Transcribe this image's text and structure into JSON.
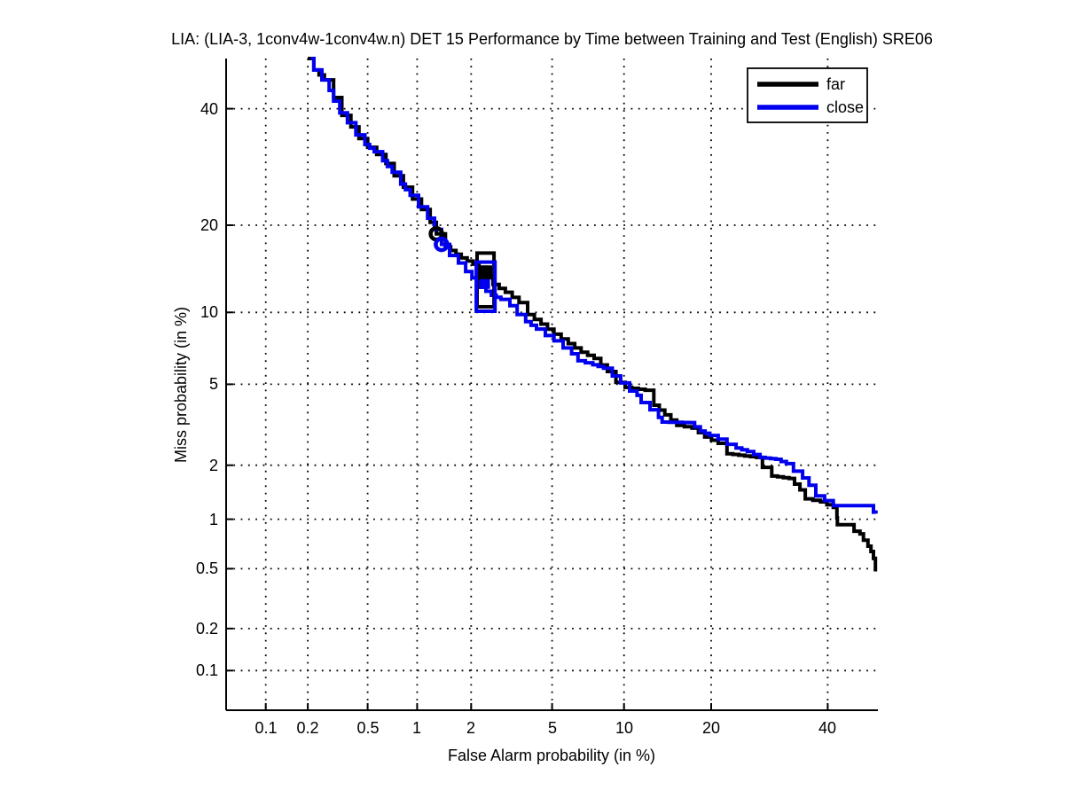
{
  "chart_data": {
    "type": "line",
    "variant": "det-curve",
    "title": "LIA: (LIA-3, 1conv4w-1conv4w.n) DET 15 Performance by Time between Training and Test (English) SRE06",
    "xlabel": "False Alarm probability (in %)",
    "ylabel": "Miss probability (in %)",
    "axis_scale": "probit",
    "xlim_pct": [
      0.05,
      50
    ],
    "ylim_pct": [
      0.05,
      50
    ],
    "xticks_pct": [
      0.1,
      0.2,
      0.5,
      1,
      2,
      5,
      10,
      20,
      40
    ],
    "xtick_labels": [
      "0.1",
      "0.2",
      "0.5",
      "1",
      "2",
      "5",
      "10",
      "20",
      "40"
    ],
    "yticks_pct": [
      40,
      20,
      10,
      5,
      2,
      1,
      0.5,
      0.2,
      0.1
    ],
    "ytick_labels": [
      "40",
      "20",
      "10",
      "5",
      "2",
      "1",
      "0.5",
      "0.2",
      "0.1"
    ],
    "grid": "dotted",
    "colors": {
      "far": "#000000",
      "close": "#0000ee",
      "grid": "#000000",
      "axis": "#000000"
    },
    "legend": {
      "position": "top-right",
      "entries": [
        {
          "label": "far",
          "color": "#000000"
        },
        {
          "label": "close",
          "color": "#0000ee"
        }
      ]
    },
    "series": [
      {
        "name": "far",
        "color": "#000000",
        "points_fa_miss_pct": [
          [
            0.2,
            50
          ],
          [
            0.22,
            47.7
          ],
          [
            0.26,
            45.7
          ],
          [
            0.3,
            42.2
          ],
          [
            0.34,
            38.7
          ],
          [
            0.39,
            36.5
          ],
          [
            0.44,
            34.3
          ],
          [
            0.5,
            32.7
          ],
          [
            0.57,
            31.4
          ],
          [
            0.65,
            29.8
          ],
          [
            0.73,
            27.7
          ],
          [
            0.83,
            25.8
          ],
          [
            0.94,
            23.9
          ],
          [
            1.06,
            22.3
          ],
          [
            1.19,
            20.4
          ],
          [
            1.29,
            18.8
          ],
          [
            1.45,
            17.1
          ],
          [
            1.77,
            15.7
          ],
          [
            2.2,
            14.6
          ],
          [
            2.6,
            12.7
          ],
          [
            3.0,
            11.9
          ],
          [
            3.5,
            10.9
          ],
          [
            3.85,
            9.8
          ],
          [
            4.45,
            9.0
          ],
          [
            5.1,
            8.2
          ],
          [
            5.9,
            7.5
          ],
          [
            6.7,
            6.9
          ],
          [
            7.6,
            6.5
          ],
          [
            8.6,
            5.7
          ],
          [
            9.3,
            5.1
          ],
          [
            10.1,
            4.84
          ],
          [
            12.0,
            4.7
          ],
          [
            12.9,
            4.0
          ],
          [
            14.1,
            3.6
          ],
          [
            15.5,
            3.2
          ],
          [
            17.4,
            3.1
          ],
          [
            19.1,
            2.8
          ],
          [
            21.0,
            2.6
          ],
          [
            22.3,
            2.3
          ],
          [
            27.0,
            2.2
          ],
          [
            28.0,
            1.95
          ],
          [
            29.6,
            1.75
          ],
          [
            32.7,
            1.7
          ],
          [
            34.7,
            1.47
          ],
          [
            35.7,
            1.31
          ],
          [
            38.6,
            1.26
          ],
          [
            41.1,
            1.17
          ],
          [
            41.8,
            1.02
          ],
          [
            41.9,
            0.93
          ],
          [
            44.3,
            0.93
          ],
          [
            45.2,
            0.85
          ],
          [
            46.4,
            0.82
          ],
          [
            47.1,
            0.75
          ],
          [
            48.0,
            0.69
          ],
          [
            48.6,
            0.64
          ],
          [
            49.1,
            0.58
          ],
          [
            49.5,
            0.48
          ]
        ]
      },
      {
        "name": "close",
        "color": "#0000ee",
        "points_fa_miss_pct": [
          [
            0.21,
            50
          ],
          [
            0.22,
            47.7
          ],
          [
            0.25,
            45.7
          ],
          [
            0.28,
            43.6
          ],
          [
            0.3,
            41.5
          ],
          [
            0.33,
            39.2
          ],
          [
            0.37,
            37.3
          ],
          [
            0.42,
            35.0
          ],
          [
            0.48,
            33.2
          ],
          [
            0.55,
            31.9
          ],
          [
            0.62,
            30.3
          ],
          [
            0.71,
            28.3
          ],
          [
            0.8,
            26.3
          ],
          [
            0.91,
            24.5
          ],
          [
            1.02,
            22.7
          ],
          [
            1.15,
            21.0
          ],
          [
            1.26,
            19.4
          ],
          [
            1.38,
            17.4
          ],
          [
            1.53,
            16.0
          ],
          [
            1.71,
            15.1
          ],
          [
            1.87,
            14.1
          ],
          [
            2.02,
            13.4
          ],
          [
            2.24,
            12.4
          ],
          [
            2.55,
            11.6
          ],
          [
            2.85,
            11.2
          ],
          [
            3.16,
            10.6
          ],
          [
            3.43,
            9.8
          ],
          [
            3.77,
            9.2
          ],
          [
            4.24,
            8.6
          ],
          [
            4.66,
            8.1
          ],
          [
            5.1,
            7.7
          ],
          [
            5.6,
            7.2
          ],
          [
            6.1,
            6.8
          ],
          [
            6.5,
            6.35
          ],
          [
            7.5,
            6.1
          ],
          [
            8.3,
            5.9
          ],
          [
            9.0,
            5.45
          ],
          [
            9.7,
            5.07
          ],
          [
            10.5,
            4.66
          ],
          [
            11.2,
            4.45
          ],
          [
            11.6,
            4.12
          ],
          [
            12.5,
            3.81
          ],
          [
            13.4,
            3.5
          ],
          [
            13.8,
            3.32
          ],
          [
            17.0,
            3.3
          ],
          [
            18.5,
            3.0
          ],
          [
            19.8,
            2.85
          ],
          [
            21.0,
            2.73
          ],
          [
            22.3,
            2.57
          ],
          [
            23.7,
            2.46
          ],
          [
            25.5,
            2.36
          ],
          [
            27.6,
            2.2
          ],
          [
            30.3,
            2.15
          ],
          [
            32.2,
            2.04
          ],
          [
            33.5,
            1.86
          ],
          [
            35.2,
            1.71
          ],
          [
            36.4,
            1.56
          ],
          [
            37.7,
            1.36
          ],
          [
            39.4,
            1.28
          ],
          [
            41.1,
            1.2
          ],
          [
            48.8,
            1.2
          ],
          [
            49.1,
            1.1
          ],
          [
            49.6,
            1.08
          ]
        ]
      }
    ],
    "markers": [
      {
        "series": "far",
        "shape": "circle",
        "fa_pct": 1.29,
        "miss_pct": 18.8
      },
      {
        "series": "close",
        "shape": "circle",
        "fa_pct": 1.38,
        "miss_pct": 17.4
      },
      {
        "series": "far",
        "shape": "box",
        "fa_range_pct": [
          2.15,
          2.63
        ],
        "miss_range_pct": [
          10.5,
          16.3
        ],
        "point": {
          "fa_pct": 2.37,
          "miss_pct": 14.0,
          "size": 16
        }
      },
      {
        "series": "close",
        "shape": "box",
        "fa_range_pct": [
          2.13,
          2.66
        ],
        "miss_range_pct": [
          10.1,
          15.2
        ],
        "point": {
          "fa_pct": 2.37,
          "miss_pct": 12.75,
          "size": 11
        }
      }
    ]
  }
}
